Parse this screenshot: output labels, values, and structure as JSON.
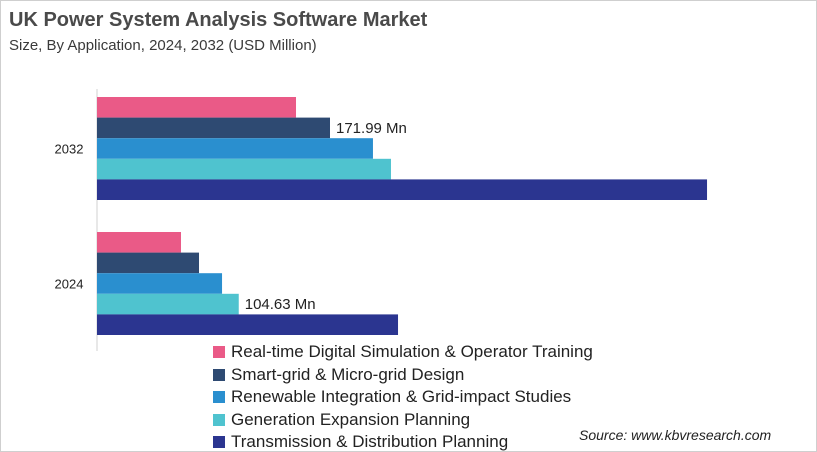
{
  "chart_data": {
    "type": "bar",
    "orientation": "horizontal",
    "title": "UK Power System Analysis Software Market",
    "subtitle": "Size, By Application, 2024, 2032 (USD Million)",
    "categories": [
      "2032",
      "2024"
    ],
    "series": [
      {
        "name": "Real-time Digital Simulation & Operator Training",
        "color": "#EA5A87",
        "values": [
          146.9,
          62.0
        ]
      },
      {
        "name": "Smart-grid & Micro-grid Design",
        "color": "#2E4A72",
        "values": [
          171.99,
          75.3
        ]
      },
      {
        "name": "Renewable Integration & Grid-impact Studies",
        "color": "#2A8FCF",
        "values": [
          203.7,
          92.3
        ]
      },
      {
        "name": "Generation Expansion Planning",
        "color": "#4FC3CF",
        "values": [
          217.0,
          104.63
        ]
      },
      {
        "name": "Transmission & Distribution Planning",
        "color": "#2B3590",
        "values": [
          450.3,
          222.2
        ]
      }
    ],
    "data_labels": [
      {
        "category": "2032",
        "series": "Smart-grid & Micro-grid Design",
        "text": "171.99 Mn"
      },
      {
        "category": "2024",
        "series": "Generation Expansion Planning",
        "text": "104.63 Mn"
      }
    ],
    "xlim": [
      0,
      460
    ],
    "grid": false,
    "legend": "bottom"
  },
  "source": "Source: www.kbvresearch.com"
}
